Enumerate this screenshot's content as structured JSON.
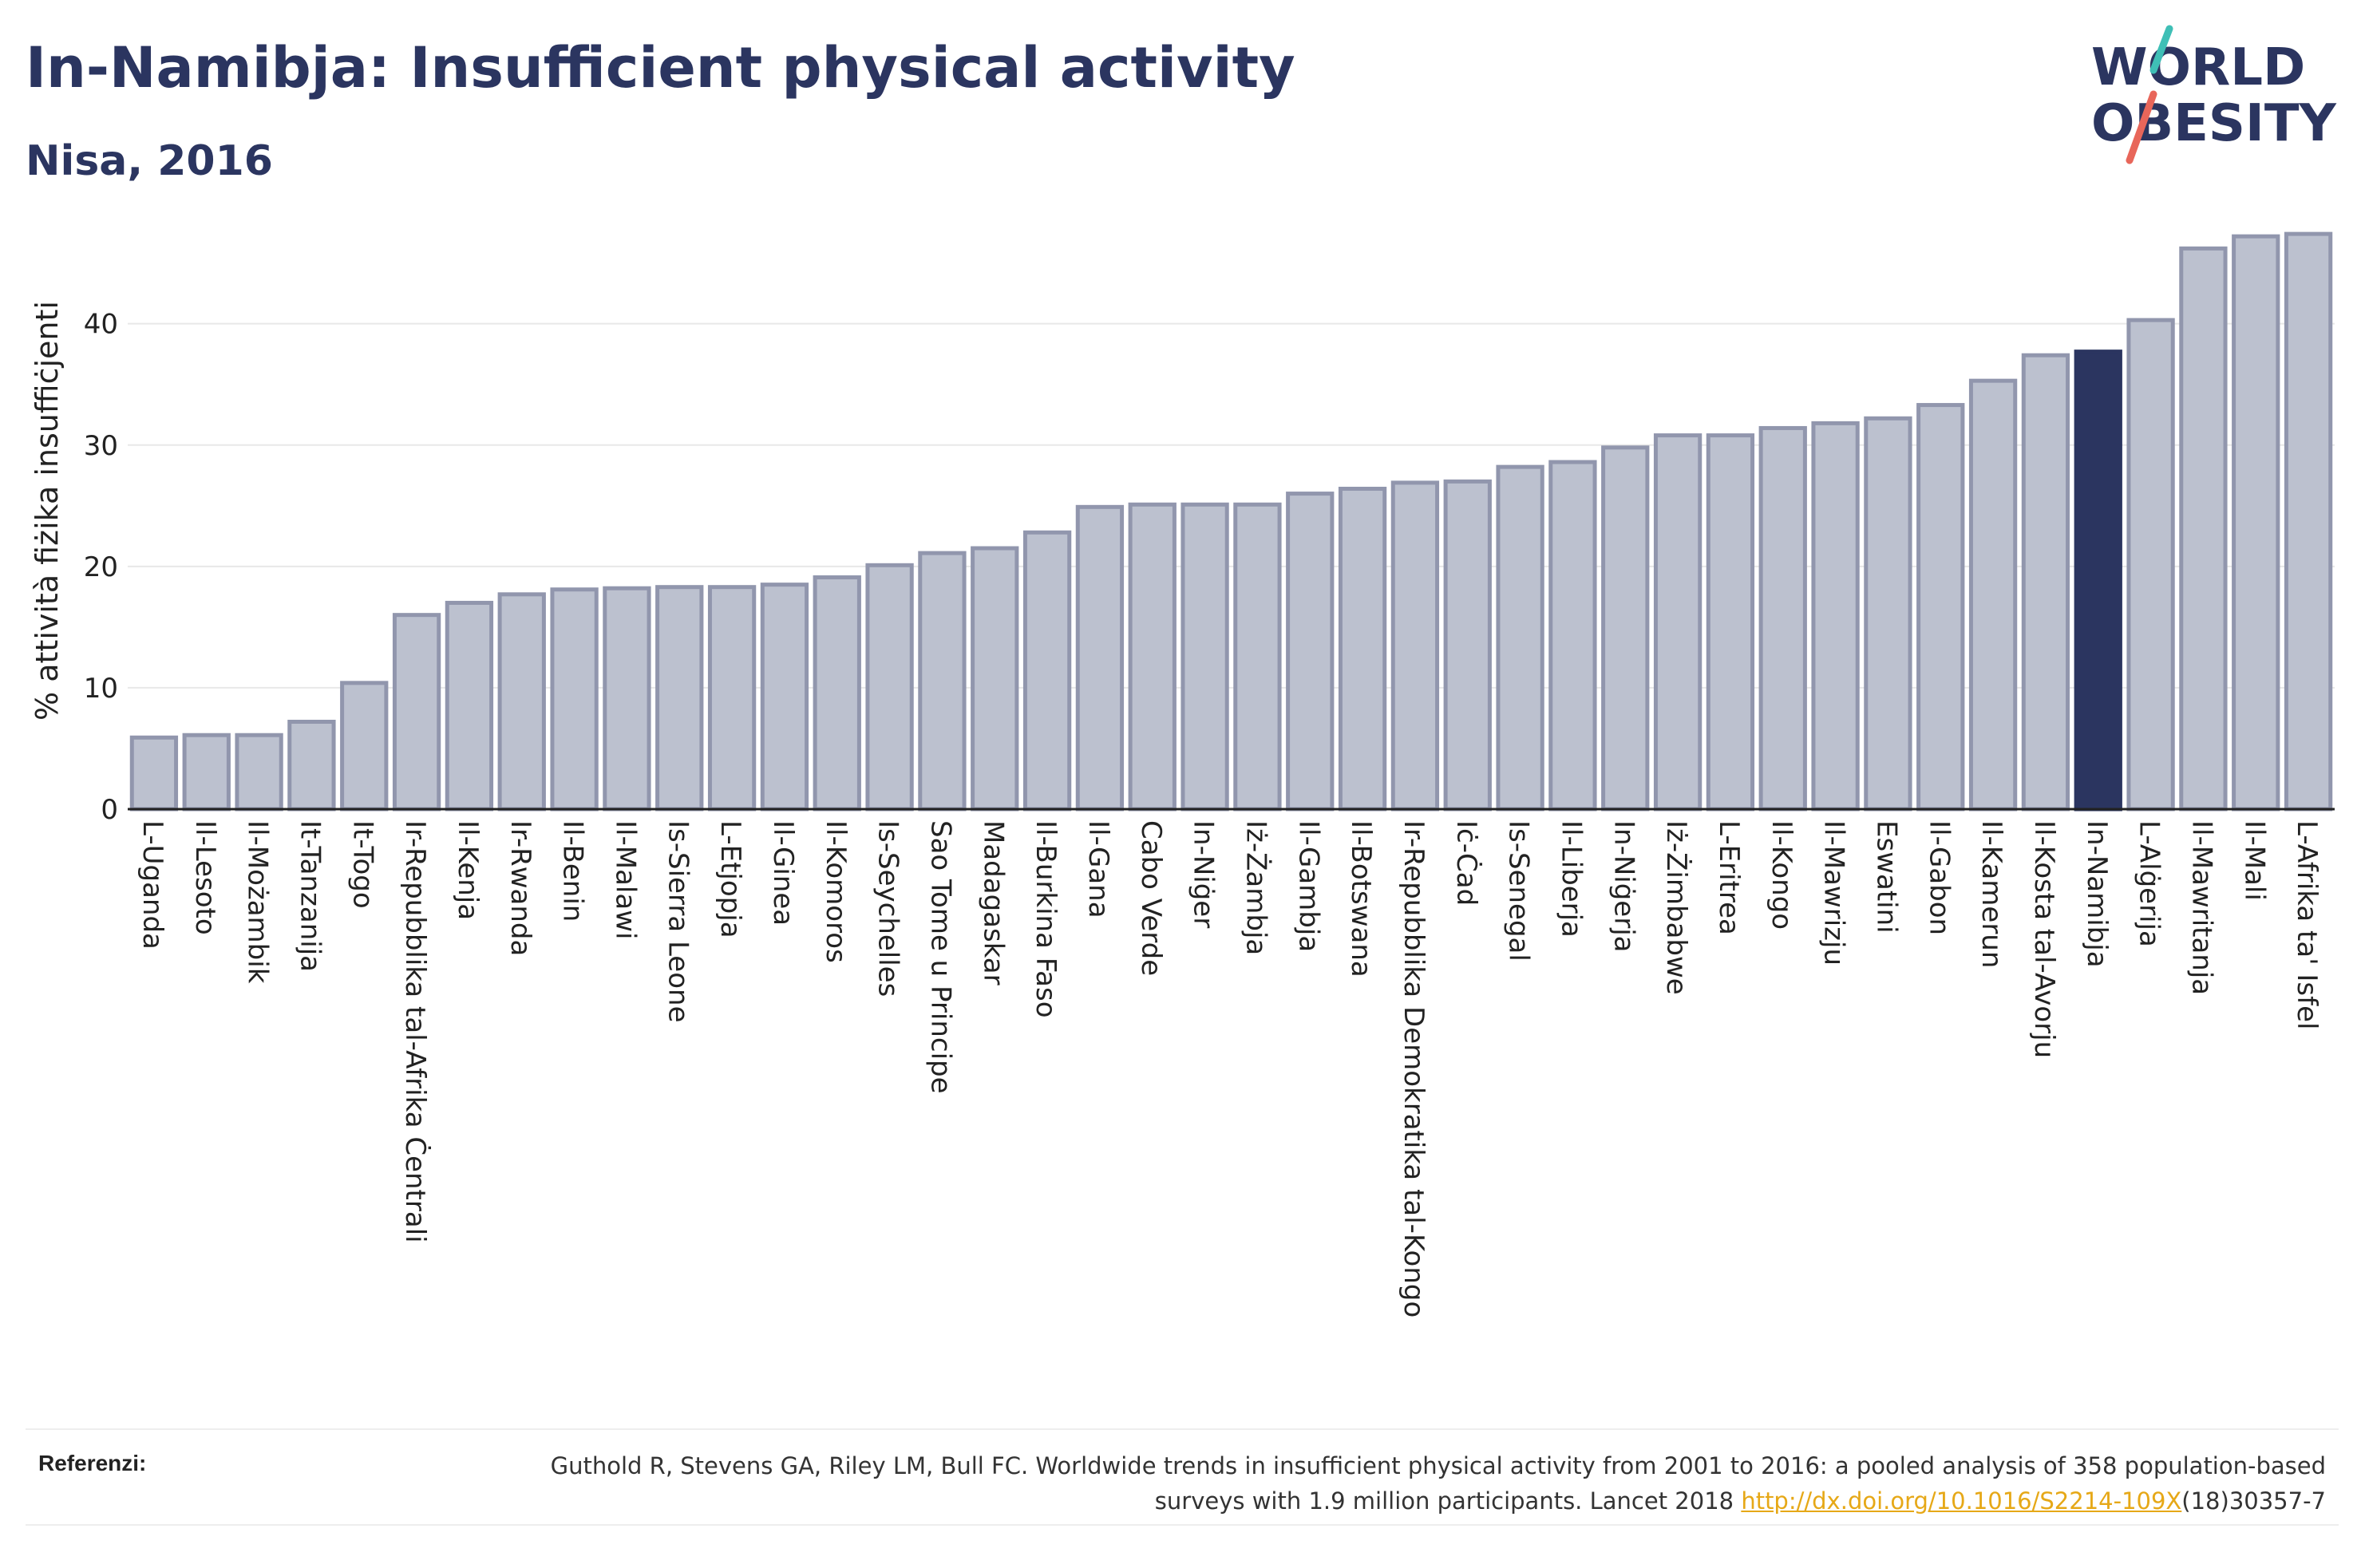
{
  "title": "In-Namibja: Insufficient physical activity",
  "subtitle": "Nisa, 2016",
  "logo": {
    "line1": "WORLD",
    "line2": "OBESITY"
  },
  "colors": {
    "bar": "#bcc1cf",
    "bar_stroke": "#9196ad",
    "highlight": "#2b3560",
    "text": "#2b3560",
    "link": "#e6a817",
    "logo_teal": "#3fbfb6",
    "logo_red": "#e8665a"
  },
  "chart_data": {
    "type": "bar",
    "ylabel": "% attività fiżika insuffiċjenti",
    "xlabel": "",
    "ylim": [
      0,
      48
    ],
    "yticks": [
      0,
      10,
      20,
      30,
      40
    ],
    "grid": true,
    "highlight": "In-Namibja",
    "categories": [
      "L-Uganda",
      "Il-Lesoto",
      "Il-Możambik",
      "It-Tanzanija",
      "It-Togo",
      "Ir-Repubblika tal-Afrika Ċentrali",
      "Il-Kenja",
      "Ir-Rwanda",
      "Il-Benin",
      "Il-Malawi",
      "Is-Sierra Leone",
      "L-Etjopja",
      "Il-Ginea",
      "Il-Komoros",
      "Is-Seychelles",
      "Sao Tome u Principe",
      "Madagaskar",
      "Il-Burkina Faso",
      "Il-Gana",
      "Cabo Verde",
      "In-Niġer",
      "Iż-Żambja",
      "Il-Gambja",
      "Il-Botswana",
      "Ir-Repubblika Demokratika tal-Kongo",
      "Iċ-Ċad",
      "Is-Senegal",
      "Il-Liberja",
      "In-Niġerja",
      "Iż-Żimbabwe",
      "L-Eritrea",
      "Il-Kongo",
      "Il-Mawrizju",
      "Eswatini",
      "Il-Gabon",
      "Il-Kamerun",
      "Il-Kosta tal-Avorju",
      "In-Namibja",
      "L-Alġerija",
      "Il-Mawritanja",
      "Il-Mali",
      "L-Afrika ta' Isfel"
    ],
    "values": [
      5.9,
      6.1,
      6.1,
      7.2,
      10.4,
      16.0,
      17.0,
      17.7,
      18.1,
      18.2,
      18.3,
      18.3,
      18.5,
      19.1,
      20.1,
      21.1,
      21.5,
      22.8,
      24.9,
      25.1,
      25.1,
      25.1,
      26.0,
      26.4,
      26.9,
      27.0,
      28.2,
      28.6,
      29.8,
      30.8,
      30.8,
      31.4,
      31.8,
      32.2,
      33.3,
      35.3,
      37.4,
      37.7,
      40.3,
      46.2,
      47.2,
      47.4
    ]
  },
  "footer": {
    "label": "Referenzi:",
    "text_before": "Guthold R, Stevens GA, Riley LM, Bull FC. Worldwide trends in insufficient physical activity from 2001 to 2016: a pooled analysis of 358 population-based surveys with 1.9 million participants. Lancet 2018 ",
    "link": "http://dx.doi.org/10.1016/S2214-109X",
    "text_after": "(18)30357-7"
  }
}
